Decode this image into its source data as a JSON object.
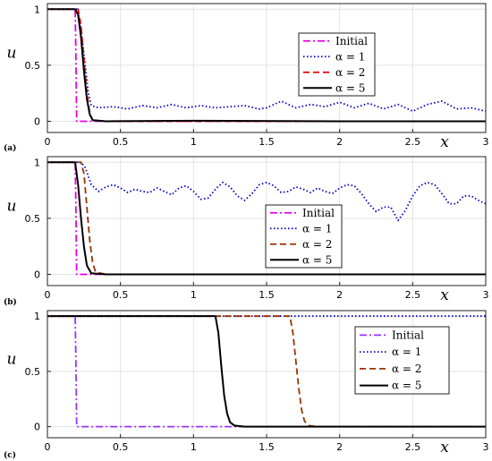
{
  "chart_data": [
    {
      "panel_label": "(a)",
      "type": "line",
      "xlabel": "x",
      "ylabel": "u",
      "xlim": [
        0,
        3
      ],
      "ylim": [
        -0.1,
        1.05
      ],
      "xticks": [
        "0",
        "0.5",
        "1",
        "1.5",
        "2",
        "2.5",
        "3"
      ],
      "yticks": [
        "0",
        "0.5",
        "1"
      ],
      "grid": true,
      "legend_position": "upper-right",
      "series": [
        {
          "name": "Initial",
          "color": "#e600e6",
          "style": "dashdot",
          "points": [
            [
              0,
              1
            ],
            [
              0.19,
              1
            ],
            [
              0.195,
              0.6
            ],
            [
              0.2,
              0
            ],
            [
              3,
              0
            ]
          ]
        },
        {
          "name": "α = 1",
          "color": "#0000cc",
          "style": "dotted",
          "points": [
            [
              0,
              1
            ],
            [
              0.2,
              1
            ],
            [
              0.22,
              0.92
            ],
            [
              0.25,
              0.6
            ],
            [
              0.28,
              0.25
            ],
            [
              0.3,
              0.14
            ],
            [
              0.35,
              0.12
            ],
            [
              0.45,
              0.13
            ],
            [
              0.55,
              0.11
            ],
            [
              0.65,
              0.14
            ],
            [
              0.75,
              0.12
            ],
            [
              0.85,
              0.15
            ],
            [
              0.95,
              0.12
            ],
            [
              1.05,
              0.14
            ],
            [
              1.15,
              0.12
            ],
            [
              1.25,
              0.13
            ],
            [
              1.35,
              0.14
            ],
            [
              1.45,
              0.11
            ],
            [
              1.5,
              0.12
            ],
            [
              1.6,
              0.18
            ],
            [
              1.7,
              0.12
            ],
            [
              1.8,
              0.15
            ],
            [
              1.9,
              0.13
            ],
            [
              2.0,
              0.17
            ],
            [
              2.1,
              0.12
            ],
            [
              2.2,
              0.16
            ],
            [
              2.3,
              0.11
            ],
            [
              2.4,
              0.15
            ],
            [
              2.5,
              0.09
            ],
            [
              2.6,
              0.15
            ],
            [
              2.7,
              0.18
            ],
            [
              2.8,
              0.11
            ],
            [
              2.9,
              0.12
            ],
            [
              3.0,
              0.09
            ]
          ]
        },
        {
          "name": "α = 2",
          "color": "#e60000",
          "style": "dashed",
          "points": [
            [
              0,
              1
            ],
            [
              0.21,
              1
            ],
            [
              0.23,
              0.85
            ],
            [
              0.25,
              0.55
            ],
            [
              0.27,
              0.25
            ],
            [
              0.29,
              0.07
            ],
            [
              0.31,
              0.01
            ],
            [
              0.4,
              0
            ],
            [
              3,
              0
            ]
          ]
        },
        {
          "name": "α = 5",
          "color": "#000000",
          "style": "solid",
          "points": [
            [
              0,
              1
            ],
            [
              0.19,
              1
            ],
            [
              0.21,
              0.95
            ],
            [
              0.23,
              0.75
            ],
            [
              0.25,
              0.45
            ],
            [
              0.27,
              0.2
            ],
            [
              0.29,
              0.06
            ],
            [
              0.31,
              0.01
            ],
            [
              0.4,
              0
            ],
            [
              1.0,
              0.005
            ],
            [
              2.0,
              0
            ],
            [
              3,
              0
            ]
          ]
        }
      ]
    },
    {
      "panel_label": "(b)",
      "type": "line",
      "xlabel": "x",
      "ylabel": "u",
      "xlim": [
        0,
        3
      ],
      "ylim": [
        -0.1,
        1.05
      ],
      "xticks": [
        "0",
        "0.5",
        "1",
        "1.5",
        "2",
        "2.5",
        "3"
      ],
      "yticks": [
        "0",
        "0.5",
        "1"
      ],
      "grid": true,
      "legend_position": "center",
      "series": [
        {
          "name": "Initial",
          "color": "#e600e6",
          "style": "dashdot",
          "points": [
            [
              0,
              1
            ],
            [
              0.19,
              1
            ],
            [
              0.195,
              0.6
            ],
            [
              0.2,
              0
            ],
            [
              3,
              0
            ]
          ]
        },
        {
          "name": "α = 1",
          "color": "#0000cc",
          "style": "dotted",
          "points": [
            [
              0,
              1
            ],
            [
              0.23,
              1
            ],
            [
              0.26,
              0.95
            ],
            [
              0.3,
              0.8
            ],
            [
              0.35,
              0.74
            ],
            [
              0.4,
              0.78
            ],
            [
              0.45,
              0.8
            ],
            [
              0.5,
              0.77
            ],
            [
              0.55,
              0.73
            ],
            [
              0.6,
              0.76
            ],
            [
              0.65,
              0.74
            ],
            [
              0.7,
              0.73
            ],
            [
              0.75,
              0.77
            ],
            [
              0.8,
              0.74
            ],
            [
              0.85,
              0.71
            ],
            [
              0.9,
              0.77
            ],
            [
              0.95,
              0.79
            ],
            [
              1.0,
              0.74
            ],
            [
              1.05,
              0.67
            ],
            [
              1.1,
              0.68
            ],
            [
              1.15,
              0.76
            ],
            [
              1.2,
              0.82
            ],
            [
              1.25,
              0.78
            ],
            [
              1.3,
              0.7
            ],
            [
              1.35,
              0.66
            ],
            [
              1.4,
              0.72
            ],
            [
              1.45,
              0.8
            ],
            [
              1.5,
              0.82
            ],
            [
              1.55,
              0.79
            ],
            [
              1.6,
              0.73
            ],
            [
              1.65,
              0.74
            ],
            [
              1.7,
              0.78
            ],
            [
              1.75,
              0.76
            ],
            [
              1.8,
              0.73
            ],
            [
              1.85,
              0.77
            ],
            [
              1.9,
              0.74
            ],
            [
              1.95,
              0.72
            ],
            [
              2.0,
              0.77
            ],
            [
              2.05,
              0.8
            ],
            [
              2.1,
              0.79
            ],
            [
              2.15,
              0.72
            ],
            [
              2.2,
              0.63
            ],
            [
              2.25,
              0.56
            ],
            [
              2.3,
              0.6
            ],
            [
              2.35,
              0.6
            ],
            [
              2.4,
              0.48
            ],
            [
              2.45,
              0.57
            ],
            [
              2.5,
              0.7
            ],
            [
              2.55,
              0.79
            ],
            [
              2.6,
              0.82
            ],
            [
              2.65,
              0.8
            ],
            [
              2.7,
              0.72
            ],
            [
              2.75,
              0.63
            ],
            [
              2.8,
              0.63
            ],
            [
              2.85,
              0.7
            ],
            [
              2.9,
              0.7
            ],
            [
              2.95,
              0.66
            ],
            [
              3.0,
              0.63
            ]
          ]
        },
        {
          "name": "α = 2",
          "color": "#993300",
          "style": "dashed",
          "points": [
            [
              0,
              1
            ],
            [
              0.23,
              1
            ],
            [
              0.25,
              0.9
            ],
            [
              0.27,
              0.6
            ],
            [
              0.29,
              0.3
            ],
            [
              0.31,
              0.1
            ],
            [
              0.33,
              0.02
            ],
            [
              0.4,
              0
            ],
            [
              3,
              0
            ]
          ]
        },
        {
          "name": "α = 5",
          "color": "#000000",
          "style": "solid",
          "points": [
            [
              0,
              1
            ],
            [
              0.19,
              1
            ],
            [
              0.21,
              0.8
            ],
            [
              0.23,
              0.5
            ],
            [
              0.25,
              0.25
            ],
            [
              0.27,
              0.08
            ],
            [
              0.3,
              0.01
            ],
            [
              0.4,
              0
            ],
            [
              3,
              0
            ]
          ]
        }
      ]
    },
    {
      "panel_label": "(c)",
      "type": "line",
      "xlabel": "x",
      "ylabel": "u",
      "xlim": [
        0,
        3
      ],
      "ylim": [
        -0.1,
        1.05
      ],
      "xticks": [
        "0",
        "0.5",
        "1",
        "1.5",
        "2",
        "2.5",
        "3"
      ],
      "yticks": [
        "0",
        "0.5",
        "1"
      ],
      "grid": true,
      "legend_position": "right",
      "series": [
        {
          "name": "Initial",
          "color": "#9933ff",
          "style": "dashdot",
          "points": [
            [
              0,
              1
            ],
            [
              0.19,
              1
            ],
            [
              0.195,
              0.6
            ],
            [
              0.2,
              0
            ],
            [
              3,
              0
            ]
          ]
        },
        {
          "name": "α = 1",
          "color": "#0000cc",
          "style": "dotted",
          "points": [
            [
              0,
              1
            ],
            [
              3,
              1
            ]
          ]
        },
        {
          "name": "α = 2",
          "color": "#993300",
          "style": "dashed",
          "points": [
            [
              0,
              1
            ],
            [
              1.66,
              1
            ],
            [
              1.68,
              0.85
            ],
            [
              1.7,
              0.6
            ],
            [
              1.72,
              0.35
            ],
            [
              1.74,
              0.15
            ],
            [
              1.76,
              0.05
            ],
            [
              1.79,
              0.01
            ],
            [
              1.85,
              0
            ],
            [
              3,
              0
            ]
          ]
        },
        {
          "name": "α = 5",
          "color": "#000000",
          "style": "solid",
          "points": [
            [
              0,
              1
            ],
            [
              1.15,
              1
            ],
            [
              1.17,
              0.85
            ],
            [
              1.19,
              0.55
            ],
            [
              1.21,
              0.28
            ],
            [
              1.23,
              0.12
            ],
            [
              1.25,
              0.04
            ],
            [
              1.28,
              0.01
            ],
            [
              1.35,
              0
            ],
            [
              3,
              0
            ]
          ]
        }
      ]
    }
  ]
}
